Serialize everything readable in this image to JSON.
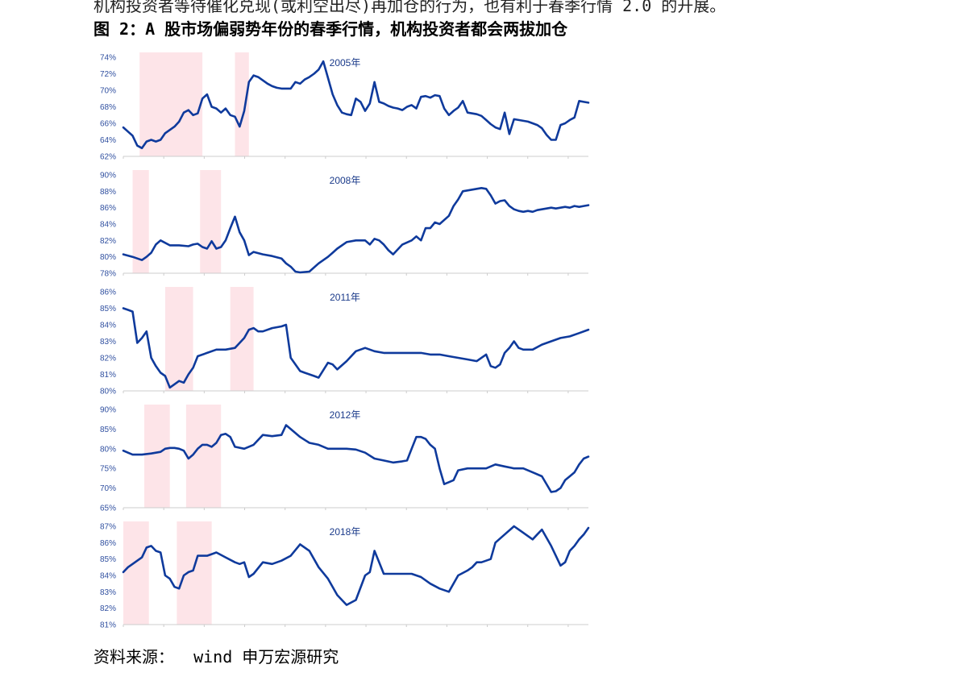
{
  "header": {
    "top_text": "机构投资者等待催化兑现(或利空出尽)再加仓的行为，也有利于春季行情 2.0 的开展。",
    "figure_title": "图 2：A 股市场偏弱势年份的春季行情，机构投资者都会两拔加仓"
  },
  "source_text": "资料来源：  wind 申万宏源研究",
  "colors": {
    "line": "#0f3a9c",
    "band": "#fde4e8",
    "axis": "#cccccc"
  },
  "chart_data": [
    {
      "type": "line",
      "title": "2005年",
      "x_range": [
        0,
        100
      ],
      "ylim": [
        62,
        74
      ],
      "y_ticks": [
        "62%",
        "64%",
        "66%",
        "68%",
        "70%",
        "72%",
        "74%"
      ],
      "shaded_ranges": [
        [
          3.5,
          17
        ],
        [
          24,
          27
        ]
      ],
      "series": [
        {
          "x": [
            0,
            1,
            2,
            3,
            4,
            5,
            6,
            7,
            8,
            9,
            10,
            11,
            12,
            13,
            14,
            15,
            16,
            17,
            18,
            19,
            20,
            21,
            22,
            23,
            24,
            25,
            26,
            27,
            28,
            29,
            30,
            31,
            32,
            33,
            34,
            35,
            36,
            37,
            38,
            39,
            40,
            41,
            42,
            43,
            44,
            45,
            46,
            47,
            48,
            49,
            50,
            51,
            52,
            53,
            54,
            55,
            56,
            57,
            58,
            59,
            60,
            61,
            62,
            63,
            64,
            65,
            66,
            67,
            68,
            69,
            70,
            71,
            72,
            73,
            74,
            75,
            76,
            77,
            78,
            79,
            80,
            81,
            82,
            83,
            84,
            85,
            86,
            87,
            88,
            89,
            90,
            91,
            92,
            93,
            94,
            95,
            96,
            97,
            98,
            99,
            100
          ],
          "values": [
            65.5,
            65,
            64.5,
            63.3,
            63,
            63.8,
            64,
            63.8,
            64,
            64.8,
            65.2,
            65.6,
            66.2,
            67.3,
            67.6,
            67,
            67.2,
            69,
            69.5,
            68,
            67.8,
            67.3,
            67.8,
            67,
            66.8,
            65.6,
            67.5,
            71,
            71.8,
            71.6,
            71.2,
            70.8,
            70.5,
            70.3,
            70.2,
            70.2,
            70.2,
            71,
            70.8,
            71.3,
            71.6,
            72,
            72.5,
            73.5,
            71.5,
            69.5,
            68.2,
            67.3,
            67.1,
            67,
            69,
            68.6,
            67.5,
            68.4,
            71,
            68.6,
            68.4,
            68.1,
            67.9,
            67.8,
            67.6,
            68,
            68.2,
            67.8,
            69.2,
            69.3,
            69.1,
            69.4,
            69.3,
            67.8,
            67,
            67.5,
            67.9,
            68.7,
            67.3,
            67.2,
            67.1,
            66.9,
            66.4,
            65.9,
            65.5,
            65.3,
            67.3,
            64.7,
            66.5,
            66.4,
            66.3,
            66.2,
            66,
            65.8,
            65.4,
            64.6,
            64,
            64,
            65.8,
            66,
            66.4,
            66.7,
            68.7,
            68.6,
            68.5
          ]
        }
      ]
    },
    {
      "type": "line",
      "title": "2008年",
      "x_range": [
        0,
        100
      ],
      "ylim": [
        78,
        90
      ],
      "y_ticks": [
        "78%",
        "80%",
        "82%",
        "84%",
        "86%",
        "88%",
        "90%"
      ],
      "shaded_ranges": [
        [
          2,
          5.5
        ],
        [
          16.5,
          21
        ]
      ],
      "series": [
        {
          "x": [
            0,
            2,
            4,
            5,
            6,
            7,
            8,
            10,
            12,
            14,
            15,
            16,
            17,
            18,
            19,
            20,
            21,
            22,
            23,
            24,
            25,
            26,
            27,
            28,
            30,
            32,
            34,
            35,
            36,
            37,
            38,
            40,
            42,
            44,
            45,
            46,
            48,
            50,
            52,
            53,
            54,
            55,
            56,
            57,
            58,
            60,
            62,
            63,
            64,
            65,
            66,
            67,
            68,
            70,
            71,
            72,
            73,
            74,
            75,
            76,
            77,
            78,
            79,
            80,
            81,
            82,
            83,
            84,
            85,
            86,
            87,
            88,
            89,
            90,
            91,
            92,
            93,
            94,
            95,
            96,
            97,
            98,
            99,
            100
          ],
          "values": [
            80.3,
            80,
            79.6,
            80,
            80.5,
            81.5,
            82,
            81.4,
            81.4,
            81.3,
            81.5,
            81.6,
            81.2,
            81,
            81.9,
            81,
            81.2,
            82,
            83.5,
            84.9,
            83,
            82,
            80.2,
            80.6,
            80.3,
            80.1,
            79.8,
            79.2,
            78.8,
            78.2,
            78.1,
            78.2,
            79.2,
            80,
            80.5,
            81,
            81.8,
            82,
            82,
            81.5,
            82.2,
            82,
            81.5,
            80.8,
            80.3,
            81.5,
            82,
            82.5,
            82,
            83.5,
            83.5,
            84.2,
            84,
            85,
            86.2,
            87,
            88,
            88.1,
            88.2,
            88.3,
            88.4,
            88.3,
            87.5,
            86.5,
            86.8,
            86.9,
            86.2,
            85.8,
            85.6,
            85.5,
            85.6,
            85.5,
            85.7,
            85.8,
            85.9,
            86,
            85.9,
            86,
            86.1,
            86,
            86.2,
            86.1,
            86.2,
            86.3
          ]
        }
      ]
    },
    {
      "type": "line",
      "title": "2011年",
      "x_range": [
        0,
        100
      ],
      "ylim": [
        80,
        86
      ],
      "y_ticks": [
        "80%",
        "81%",
        "82%",
        "83%",
        "84%",
        "85%",
        "86%"
      ],
      "shaded_ranges": [
        [
          9,
          15
        ],
        [
          23,
          28
        ]
      ],
      "series": [
        {
          "x": [
            0,
            1,
            2,
            3,
            4,
            5,
            6,
            7,
            8,
            9,
            10,
            11,
            12,
            13,
            14,
            15,
            16,
            18,
            20,
            22,
            24,
            25,
            26,
            27,
            28,
            29,
            30,
            32,
            34,
            35,
            36,
            38,
            39,
            40,
            41,
            42,
            44,
            45,
            46,
            48,
            50,
            52,
            54,
            56,
            58,
            60,
            62,
            64,
            66,
            68,
            70,
            72,
            74,
            76,
            78,
            79,
            80,
            81,
            82,
            83,
            84,
            85,
            86,
            88,
            90,
            92,
            94,
            96,
            98,
            100
          ],
          "values": [
            85,
            84.9,
            84.8,
            82.9,
            83.2,
            83.6,
            82,
            81.5,
            81.1,
            80.9,
            80.2,
            80.4,
            80.6,
            80.5,
            81,
            81.4,
            82.1,
            82.3,
            82.5,
            82.5,
            82.6,
            82.9,
            83.2,
            83.7,
            83.8,
            83.6,
            83.6,
            83.8,
            83.9,
            84,
            82,
            81.2,
            81.1,
            81,
            80.9,
            80.8,
            81.7,
            81.6,
            81.3,
            81.8,
            82.4,
            82.6,
            82.4,
            82.3,
            82.3,
            82.3,
            82.3,
            82.3,
            82.2,
            82.2,
            82.1,
            82,
            81.9,
            81.8,
            82.2,
            81.5,
            81.4,
            81.6,
            82.3,
            82.6,
            83,
            82.6,
            82.5,
            82.5,
            82.8,
            83,
            83.2,
            83.3,
            83.5,
            83.7
          ]
        }
      ]
    },
    {
      "type": "line",
      "title": "2012年",
      "x_range": [
        0,
        100
      ],
      "ylim": [
        65,
        90
      ],
      "y_ticks": [
        "65%",
        "70%",
        "75%",
        "80%",
        "85%",
        "90%"
      ],
      "shaded_ranges": [
        [
          4.5,
          10
        ],
        [
          13.5,
          21
        ]
      ],
      "series": [
        {
          "x": [
            0,
            1,
            2,
            3,
            4,
            6,
            8,
            9,
            10,
            11,
            12,
            13,
            14,
            15,
            16,
            17,
            18,
            19,
            20,
            21,
            22,
            23,
            24,
            26,
            28,
            30,
            32,
            34,
            35,
            36,
            38,
            40,
            42,
            44,
            46,
            48,
            50,
            52,
            54,
            56,
            58,
            60,
            61,
            62,
            63,
            64,
            65,
            66,
            67,
            68,
            69,
            70,
            71,
            72,
            74,
            76,
            78,
            80,
            82,
            84,
            86,
            88,
            90,
            92,
            93,
            94,
            95,
            96,
            97,
            98,
            99,
            100
          ],
          "values": [
            79.5,
            79,
            78.5,
            78.5,
            78.5,
            78.8,
            79.2,
            80,
            80.2,
            80.2,
            80,
            79.5,
            77.5,
            78.5,
            80,
            81,
            81,
            80.5,
            81.5,
            83.5,
            83.8,
            83,
            80.5,
            80,
            81,
            83.5,
            83.2,
            83.5,
            86,
            85,
            83,
            81.5,
            81,
            80,
            80,
            80,
            79.8,
            79,
            77.5,
            77,
            76.5,
            76.8,
            77,
            80,
            83,
            83,
            82.5,
            81,
            80,
            75,
            71,
            71.5,
            72,
            74.5,
            75,
            75,
            75,
            76,
            75.5,
            75,
            75,
            74,
            73,
            69,
            69.2,
            70,
            72,
            73,
            74,
            76,
            77.5,
            78
          ]
        }
      ]
    },
    {
      "type": "line",
      "title": "2018年",
      "x_range": [
        0,
        100
      ],
      "ylim": [
        81,
        87
      ],
      "y_ticks": [
        "81%",
        "82%",
        "83%",
        "84%",
        "85%",
        "86%",
        "87%"
      ],
      "shaded_ranges": [
        [
          0,
          5.5
        ],
        [
          11.5,
          19
        ]
      ],
      "series": [
        {
          "x": [
            0,
            1,
            2,
            3,
            4,
            5,
            6,
            7,
            8,
            9,
            10,
            11,
            12,
            13,
            14,
            15,
            16,
            17,
            18,
            19,
            20,
            22,
            24,
            25,
            26,
            27,
            28,
            30,
            32,
            34,
            36,
            38,
            40,
            42,
            44,
            46,
            48,
            50,
            52,
            53,
            54,
            55,
            56,
            57,
            58,
            59,
            60,
            62,
            64,
            66,
            68,
            70,
            72,
            74,
            75,
            76,
            77,
            78,
            79,
            80,
            82,
            84,
            85,
            86,
            88,
            89,
            90,
            92,
            93,
            94,
            95,
            96,
            97,
            98,
            99,
            100
          ],
          "values": [
            84.2,
            84.5,
            84.7,
            84.9,
            85.1,
            85.7,
            85.8,
            85.5,
            85.4,
            84,
            83.8,
            83.3,
            83.2,
            84,
            84.2,
            84.3,
            85.2,
            85.2,
            85.2,
            85.3,
            85.4,
            85.1,
            84.8,
            84.7,
            84.8,
            83.9,
            84.1,
            84.8,
            84.7,
            84.9,
            85.2,
            85.9,
            85.5,
            84.5,
            83.8,
            82.8,
            82.2,
            82.5,
            84,
            84.2,
            85.5,
            84.8,
            84.1,
            84.1,
            84.1,
            84.1,
            84.1,
            84.1,
            83.9,
            83.5,
            83.2,
            83,
            84,
            84.3,
            84.5,
            84.8,
            84.8,
            84.9,
            85,
            86,
            86.5,
            87,
            86.8,
            86.6,
            86.2,
            86.5,
            86.8,
            85.8,
            85.2,
            84.6,
            84.8,
            85.5,
            85.8,
            86.2,
            86.5,
            86.9
          ]
        }
      ]
    }
  ]
}
